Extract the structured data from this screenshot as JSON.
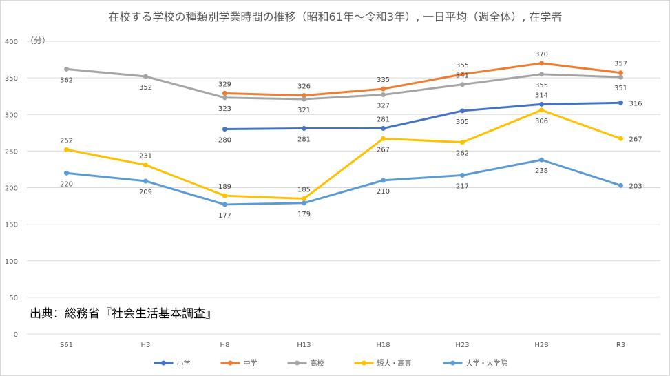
{
  "chart_data": {
    "type": "line",
    "title": "在校する学校の種類別学業時間の推移（昭和61年～令和3年）, 一日平均（週全体）, 在学者",
    "ylabel_unit": "（分）",
    "source_note": "出典：総務省『社会生活基本調査』",
    "categories": [
      "S61",
      "H3",
      "H8",
      "H13",
      "H18",
      "H23",
      "H28",
      "R3"
    ],
    "ylim": [
      0,
      400
    ],
    "yticks": [
      "0",
      "50",
      "100",
      "150",
      "200",
      "250",
      "300",
      "350",
      "400"
    ],
    "grid": true,
    "legend_position": "bottom",
    "series": [
      {
        "name": "小学",
        "color": "#4472C4",
        "values": [
          null,
          null,
          280,
          281,
          281,
          305,
          314,
          316
        ],
        "label_pos": [
          "",
          "",
          "below",
          "below",
          "above",
          "below",
          "above",
          "right"
        ]
      },
      {
        "name": "中学",
        "color": "#ED7D31",
        "values": [
          null,
          null,
          329,
          326,
          335,
          355,
          370,
          357
        ],
        "label_pos": [
          "",
          "",
          "above",
          "above",
          "above",
          "above",
          "above",
          "above"
        ]
      },
      {
        "name": "高校",
        "color": "#A5A5A5",
        "values": [
          362,
          352,
          323,
          321,
          327,
          341,
          355,
          351
        ],
        "label_pos": [
          "below",
          "below",
          "below",
          "below",
          "below",
          "above",
          "below",
          "below"
        ]
      },
      {
        "name": "短大・高専",
        "color": "#FFC000",
        "values": [
          252,
          231,
          189,
          185,
          267,
          262,
          306,
          267
        ],
        "label_pos": [
          "above",
          "above",
          "above",
          "above",
          "below",
          "below",
          "below",
          "right"
        ]
      },
      {
        "name": "大学・大学院",
        "color": "#5B9BD5",
        "values": [
          220,
          209,
          177,
          179,
          210,
          217,
          238,
          203
        ],
        "label_pos": [
          "below",
          "below",
          "below",
          "below",
          "below",
          "below",
          "below",
          "right"
        ]
      }
    ]
  }
}
